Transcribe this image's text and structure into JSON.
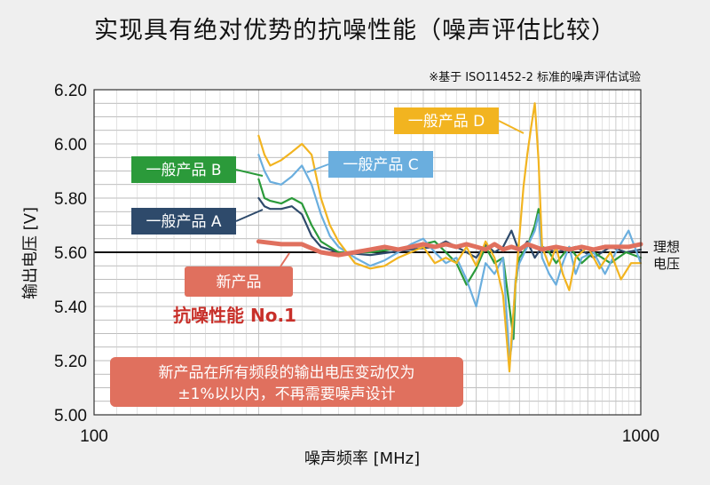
{
  "title": "实现具有绝对优势的抗噪性能（噪声评估比较）",
  "note": "※基于 ISO11452-2 标准的噪声评估试验",
  "chart_data": {
    "type": "line",
    "xscale": "log",
    "xlim": [
      100,
      1000
    ],
    "ylim": [
      5.0,
      6.2
    ],
    "xlabel": "噪声频率 [MHz]",
    "ylabel": "输出电压 [V]",
    "x_ticks": [
      "100",
      "1000"
    ],
    "y_ticks": [
      "5.00",
      "5.20",
      "5.40",
      "5.60",
      "5.80",
      "6.00",
      "6.20"
    ],
    "ideal_voltage": 5.6,
    "ideal_label_line1": "理想",
    "ideal_label_line2": "电压",
    "grid": true,
    "series": [
      {
        "name": "一般产品 A",
        "color": "#2e4a6b",
        "points": [
          [
            200,
            5.8
          ],
          [
            205,
            5.77
          ],
          [
            210,
            5.76
          ],
          [
            220,
            5.76
          ],
          [
            230,
            5.77
          ],
          [
            240,
            5.74
          ],
          [
            250,
            5.66
          ],
          [
            260,
            5.62
          ],
          [
            280,
            5.6
          ],
          [
            320,
            5.59
          ],
          [
            380,
            5.61
          ],
          [
            420,
            5.62
          ],
          [
            440,
            5.64
          ],
          [
            460,
            5.62
          ],
          [
            480,
            5.6
          ],
          [
            500,
            5.58
          ],
          [
            520,
            5.63
          ],
          [
            540,
            5.6
          ],
          [
            560,
            5.62
          ],
          [
            580,
            5.68
          ],
          [
            600,
            5.6
          ],
          [
            620,
            5.64
          ],
          [
            640,
            5.58
          ],
          [
            660,
            5.62
          ],
          [
            700,
            5.6
          ],
          [
            760,
            5.62
          ],
          [
            820,
            5.58
          ],
          [
            880,
            5.62
          ],
          [
            940,
            5.6
          ],
          [
            1000,
            5.61
          ]
        ]
      },
      {
        "name": "一般产品 B",
        "color": "#2b9a3a",
        "points": [
          [
            200,
            5.87
          ],
          [
            205,
            5.8
          ],
          [
            210,
            5.79
          ],
          [
            220,
            5.78
          ],
          [
            230,
            5.8
          ],
          [
            240,
            5.78
          ],
          [
            250,
            5.7
          ],
          [
            260,
            5.64
          ],
          [
            280,
            5.6
          ],
          [
            320,
            5.6
          ],
          [
            380,
            5.62
          ],
          [
            420,
            5.64
          ],
          [
            440,
            5.6
          ],
          [
            460,
            5.56
          ],
          [
            480,
            5.48
          ],
          [
            500,
            5.54
          ],
          [
            520,
            5.62
          ],
          [
            540,
            5.56
          ],
          [
            560,
            5.58
          ],
          [
            580,
            5.34
          ],
          [
            585,
            5.28
          ],
          [
            590,
            5.48
          ],
          [
            600,
            5.58
          ],
          [
            620,
            5.62
          ],
          [
            640,
            5.7
          ],
          [
            650,
            5.76
          ],
          [
            660,
            5.62
          ],
          [
            680,
            5.6
          ],
          [
            700,
            5.56
          ],
          [
            740,
            5.62
          ],
          [
            780,
            5.56
          ],
          [
            820,
            5.6
          ],
          [
            880,
            5.56
          ],
          [
            940,
            5.6
          ],
          [
            1000,
            5.58
          ]
        ]
      },
      {
        "name": "一般产品 C",
        "color": "#6aaede",
        "points": [
          [
            200,
            5.96
          ],
          [
            205,
            5.9
          ],
          [
            210,
            5.86
          ],
          [
            220,
            5.85
          ],
          [
            230,
            5.88
          ],
          [
            240,
            5.92
          ],
          [
            250,
            5.85
          ],
          [
            260,
            5.74
          ],
          [
            270,
            5.66
          ],
          [
            280,
            5.62
          ],
          [
            300,
            5.58
          ],
          [
            320,
            5.55
          ],
          [
            340,
            5.57
          ],
          [
            360,
            5.6
          ],
          [
            380,
            5.63
          ],
          [
            400,
            5.65
          ],
          [
            420,
            5.6
          ],
          [
            440,
            5.56
          ],
          [
            460,
            5.58
          ],
          [
            480,
            5.5
          ],
          [
            500,
            5.4
          ],
          [
            520,
            5.56
          ],
          [
            540,
            5.52
          ],
          [
            560,
            5.58
          ],
          [
            575,
            5.2
          ],
          [
            580,
            5.25
          ],
          [
            590,
            5.5
          ],
          [
            600,
            5.56
          ],
          [
            620,
            5.62
          ],
          [
            640,
            5.68
          ],
          [
            650,
            5.74
          ],
          [
            660,
            5.58
          ],
          [
            680,
            5.52
          ],
          [
            700,
            5.48
          ],
          [
            720,
            5.56
          ],
          [
            740,
            5.62
          ],
          [
            760,
            5.52
          ],
          [
            780,
            5.58
          ],
          [
            820,
            5.6
          ],
          [
            860,
            5.52
          ],
          [
            900,
            5.6
          ],
          [
            950,
            5.68
          ],
          [
            1000,
            5.56
          ]
        ]
      },
      {
        "name": "一般产品 D",
        "color": "#f2b420",
        "points": [
          [
            200,
            6.03
          ],
          [
            205,
            5.96
          ],
          [
            210,
            5.92
          ],
          [
            220,
            5.94
          ],
          [
            230,
            5.97
          ],
          [
            240,
            6.0
          ],
          [
            250,
            5.96
          ],
          [
            260,
            5.8
          ],
          [
            270,
            5.7
          ],
          [
            280,
            5.64
          ],
          [
            300,
            5.56
          ],
          [
            320,
            5.54
          ],
          [
            340,
            5.55
          ],
          [
            360,
            5.58
          ],
          [
            380,
            5.6
          ],
          [
            400,
            5.62
          ],
          [
            420,
            5.56
          ],
          [
            440,
            5.58
          ],
          [
            460,
            5.56
          ],
          [
            480,
            5.62
          ],
          [
            500,
            5.55
          ],
          [
            520,
            5.64
          ],
          [
            540,
            5.58
          ],
          [
            560,
            5.44
          ],
          [
            575,
            5.16
          ],
          [
            580,
            5.28
          ],
          [
            590,
            5.48
          ],
          [
            600,
            5.66
          ],
          [
            610,
            5.84
          ],
          [
            620,
            5.96
          ],
          [
            630,
            6.06
          ],
          [
            640,
            6.15
          ],
          [
            650,
            5.94
          ],
          [
            660,
            5.62
          ],
          [
            680,
            5.55
          ],
          [
            700,
            5.62
          ],
          [
            720,
            5.52
          ],
          [
            740,
            5.46
          ],
          [
            760,
            5.58
          ],
          [
            800,
            5.62
          ],
          [
            840,
            5.54
          ],
          [
            880,
            5.6
          ],
          [
            920,
            5.5
          ],
          [
            960,
            5.56
          ],
          [
            1000,
            5.56
          ]
        ]
      },
      {
        "name": "新产品",
        "color": "#e0705e",
        "points": [
          [
            200,
            5.64
          ],
          [
            220,
            5.63
          ],
          [
            240,
            5.63
          ],
          [
            260,
            5.6
          ],
          [
            280,
            5.59
          ],
          [
            300,
            5.6
          ],
          [
            320,
            5.61
          ],
          [
            340,
            5.62
          ],
          [
            360,
            5.61
          ],
          [
            380,
            5.62
          ],
          [
            400,
            5.63
          ],
          [
            420,
            5.62
          ],
          [
            440,
            5.63
          ],
          [
            460,
            5.62
          ],
          [
            480,
            5.63
          ],
          [
            500,
            5.62
          ],
          [
            520,
            5.61
          ],
          [
            540,
            5.63
          ],
          [
            560,
            5.61
          ],
          [
            580,
            5.62
          ],
          [
            600,
            5.61
          ],
          [
            620,
            5.63
          ],
          [
            640,
            5.62
          ],
          [
            660,
            5.61
          ],
          [
            700,
            5.62
          ],
          [
            740,
            5.61
          ],
          [
            780,
            5.62
          ],
          [
            820,
            5.61
          ],
          [
            860,
            5.62
          ],
          [
            900,
            5.62
          ],
          [
            950,
            5.62
          ],
          [
            1000,
            5.63
          ]
        ]
      }
    ]
  },
  "callouts": {
    "product_a": "一般产品 A",
    "product_b": "一般产品 B",
    "product_c": "一般产品 C",
    "product_d": "一般产品 D",
    "new_product": "新产品",
    "noise_immunity": "抗噪性能 No.1",
    "summary_line1": "新产品在所有频段的输出电压变动仅为",
    "summary_line2": "±1%以以内，不再需要噪声设计"
  },
  "colors": {
    "background": "#efefef",
    "plot_bg": "#ffffff",
    "grid": "#a8a8a8",
    "ideal_line": "#111111",
    "new_product_box": "#e0705e",
    "noise_text": "#c8302a"
  }
}
